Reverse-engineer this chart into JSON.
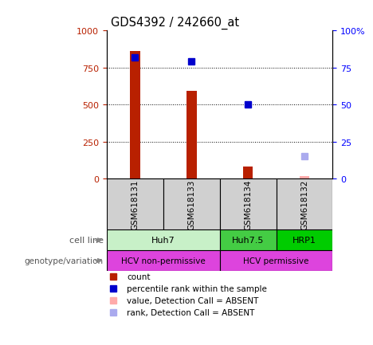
{
  "title": "GDS4392 / 242660_at",
  "samples": [
    "GSM618131",
    "GSM618133",
    "GSM618134",
    "GSM618132"
  ],
  "count_values": [
    860,
    590,
    80,
    20
  ],
  "percentile_values": [
    82,
    79,
    50,
    null
  ],
  "absent_count_values": [
    null,
    null,
    null,
    20
  ],
  "absent_rank_values": [
    null,
    null,
    null,
    15
  ],
  "count_color": "#b82000",
  "percentile_color": "#0000cc",
  "absent_count_color": "#ffaaaa",
  "absent_rank_color": "#aaaaee",
  "ylim_left": [
    0,
    1000
  ],
  "ylim_right": [
    0,
    100
  ],
  "yticks_left": [
    0,
    250,
    500,
    750,
    1000
  ],
  "yticks_right": [
    0,
    25,
    50,
    75,
    100
  ],
  "cell_groups": [
    {
      "label": "Huh7",
      "start": 0,
      "end": 1,
      "color": "#c8f0c8"
    },
    {
      "label": "Huh7.5",
      "start": 2,
      "end": 2,
      "color": "#44cc44"
    },
    {
      "label": "HRP1",
      "start": 3,
      "end": 3,
      "color": "#00cc00"
    }
  ],
  "geno_groups": [
    {
      "label": "HCV non-permissive",
      "start": 0,
      "end": 1,
      "color": "#dd44dd"
    },
    {
      "label": "HCV permissive",
      "start": 2,
      "end": 3,
      "color": "#dd44dd"
    }
  ],
  "cell_line_row_label": "cell line",
  "genotype_row_label": "genotype/variation",
  "legend_items": [
    {
      "label": "count",
      "color": "#b82000"
    },
    {
      "label": "percentile rank within the sample",
      "color": "#0000cc"
    },
    {
      "label": "value, Detection Call = ABSENT",
      "color": "#ffaaaa"
    },
    {
      "label": "rank, Detection Call = ABSENT",
      "color": "#aaaaee"
    }
  ],
  "bar_width": 0.18,
  "marker_size": 6
}
